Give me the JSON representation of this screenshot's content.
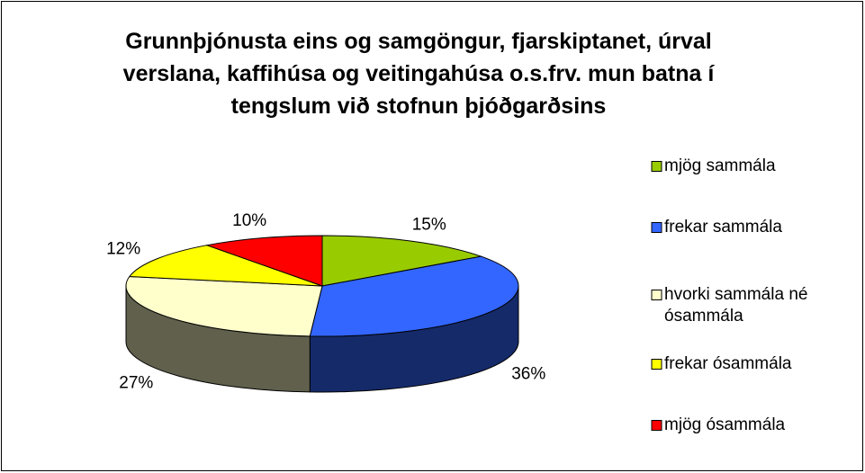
{
  "chart_data": {
    "type": "pie",
    "title": "Grunnþjónusta eins og samgöngur, fjarskiptanet, úrval verslana, kaffihúsa og veitingahúsa o.s.frv. mun batna í tengslum við stofnun þjóðgarðsins",
    "categories": [
      "mjög sammála",
      "frekar sammála",
      "hvorki sammála né ósammála",
      "frekar ósammála",
      "mjög ósammála"
    ],
    "values": [
      15,
      36,
      27,
      12,
      10
    ],
    "value_labels": [
      "15%",
      "36%",
      "27%",
      "12%",
      "10%"
    ],
    "colors": [
      "#99cc00",
      "#3366ff",
      "#ffffcc",
      "#ffff00",
      "#ff0000"
    ],
    "legend": "right"
  }
}
